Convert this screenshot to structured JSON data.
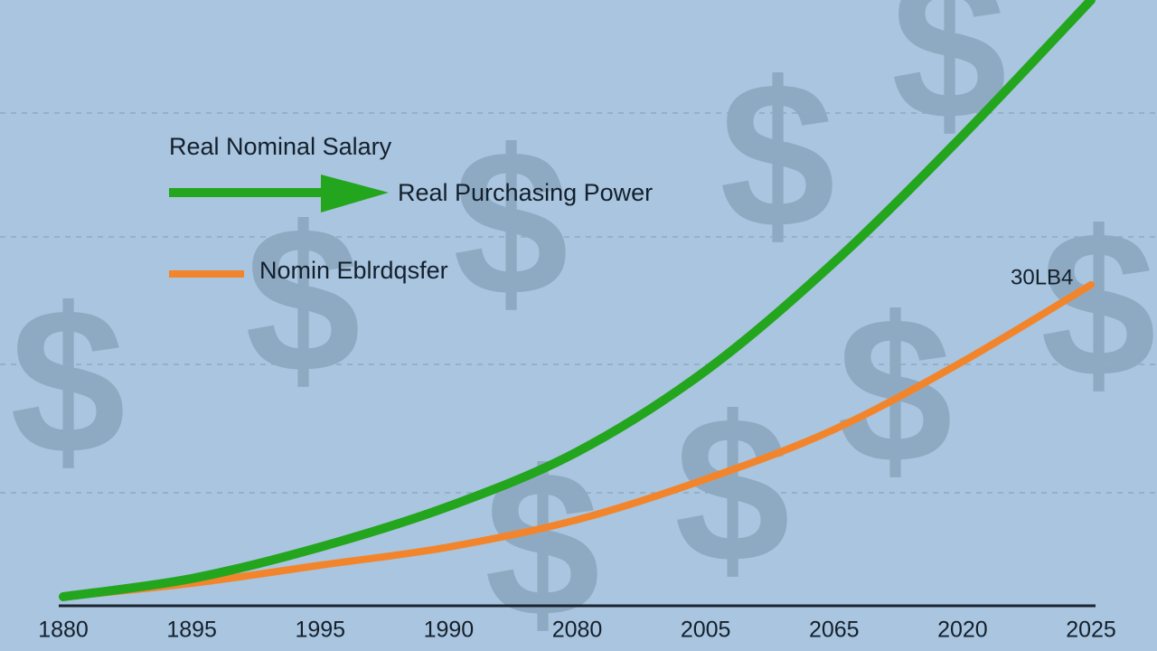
{
  "chart_data": {
    "type": "line",
    "legend_title": "Real Nominal Salary",
    "legend_position": "upper left",
    "annotation": "30LB4",
    "watermark": "$",
    "categories": [
      "1880",
      "1895",
      "1995",
      "1990",
      "2080",
      "2005",
      "2065",
      "2020",
      "2025"
    ],
    "series": [
      {
        "name": "Nomin Eblrdqsfer",
        "color": "#f2852c",
        "values": [
          1.5,
          3.7,
          6.7,
          9.7,
          14.2,
          20.9,
          29.1,
          40.3,
          53.0
        ]
      },
      {
        "name": "Real Purchasing Power",
        "color": "#23a51e",
        "values": [
          1.5,
          4.5,
          9.7,
          16.4,
          25.4,
          38.8,
          56.7,
          77.6,
          100
        ]
      }
    ],
    "ylim": [
      0,
      100
    ]
  }
}
